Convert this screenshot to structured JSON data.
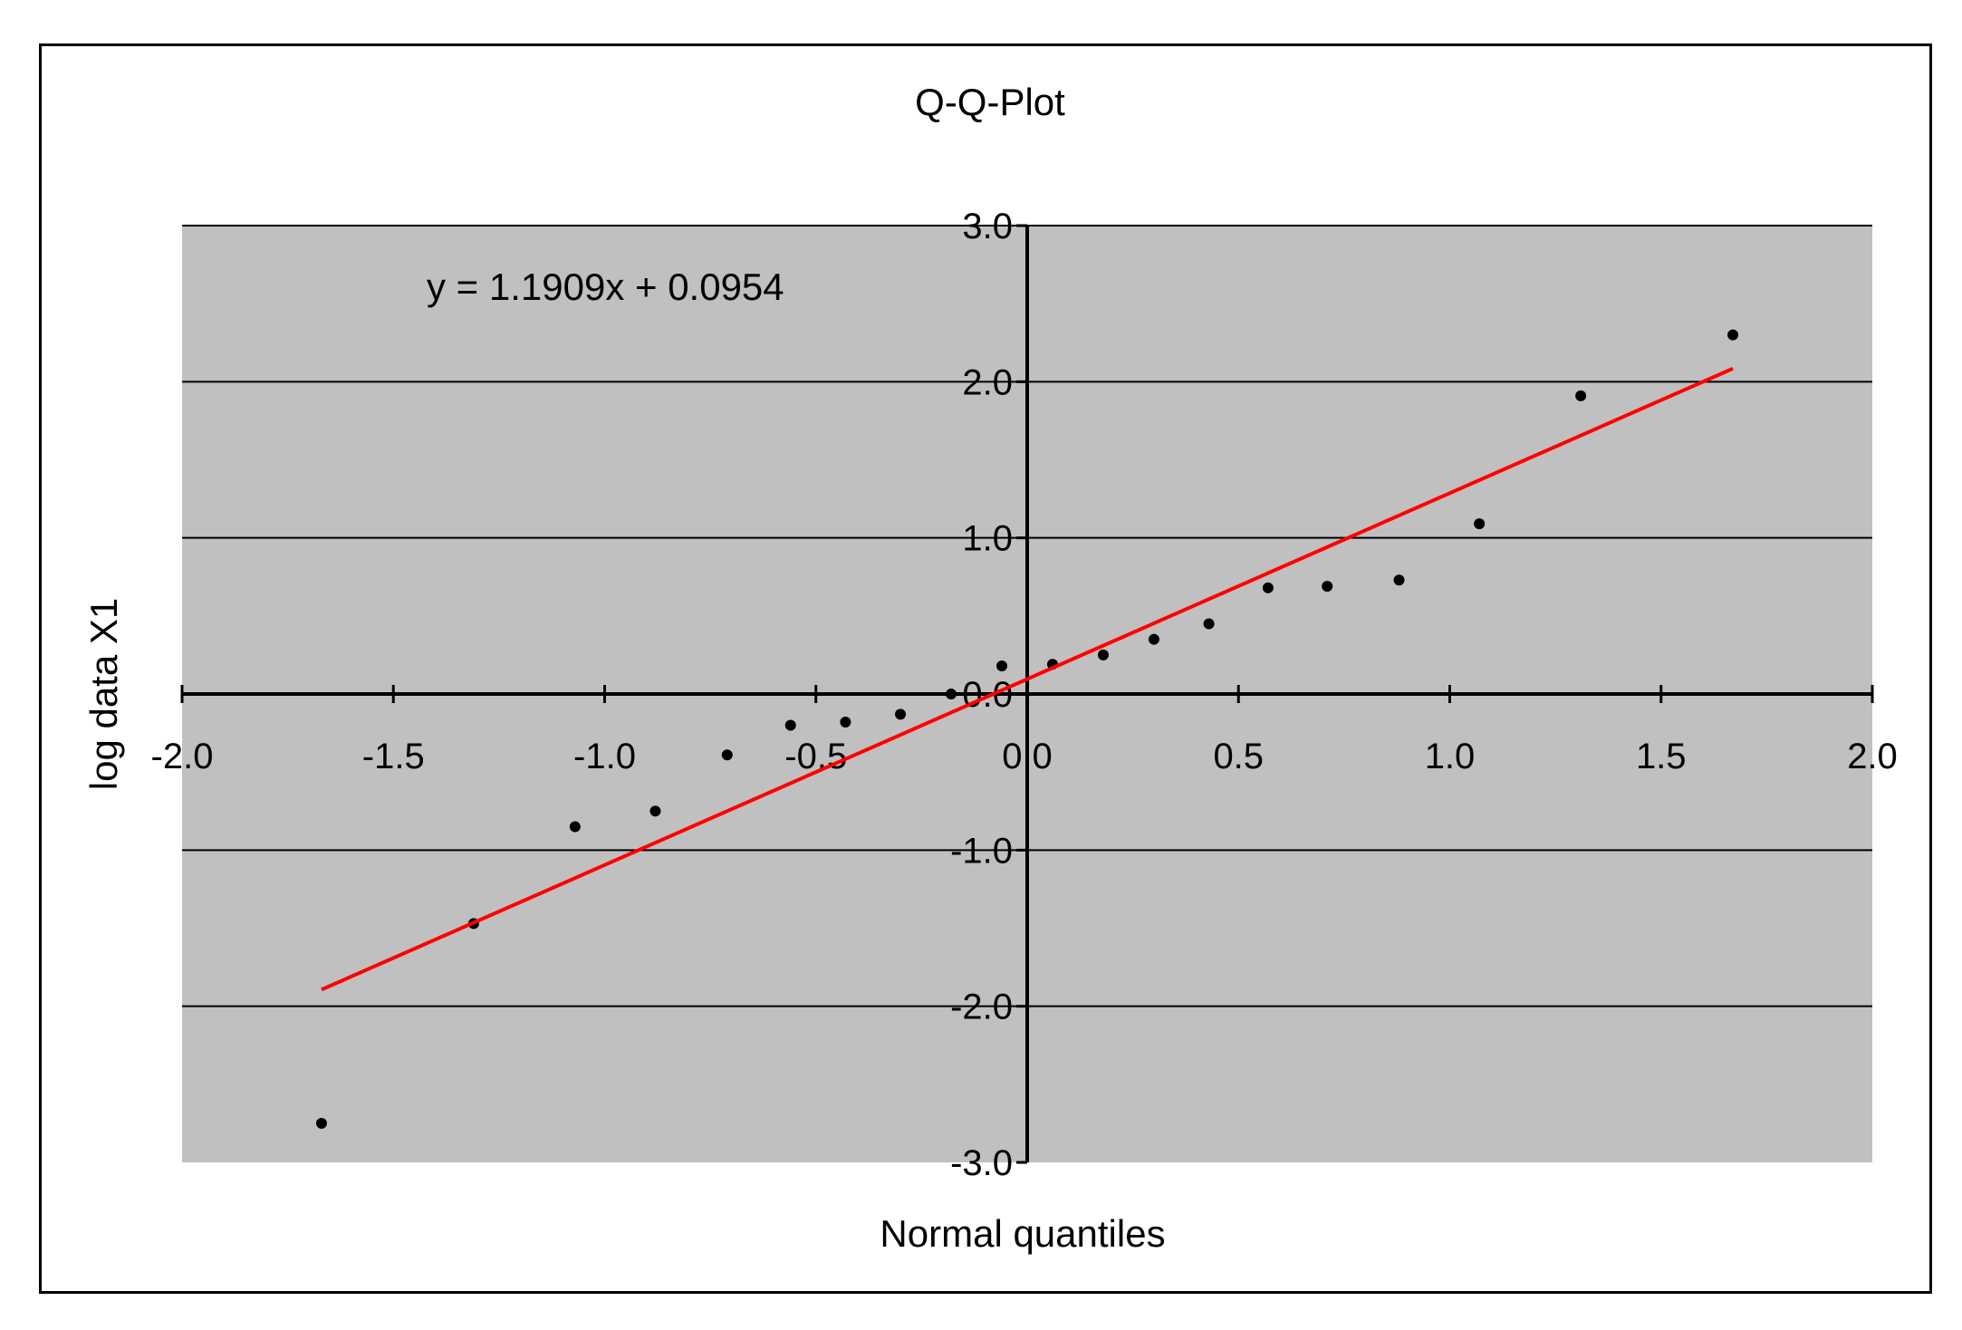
{
  "chart_data": {
    "type": "scatter",
    "title": "Q-Q-Plot",
    "xlabel": "Normal quantiles",
    "ylabel": "log data X1",
    "xlim": [
      -2.0,
      2.0
    ],
    "ylim": [
      -3.0,
      3.0
    ],
    "x_ticks": [
      "-2.0",
      "-1.5",
      "-1.0",
      "-0.5",
      "0.0",
      "0.5",
      "1.0",
      "1.5",
      "2.0"
    ],
    "y_ticks": [
      "3.0",
      "2.0",
      "1.0",
      "0.0",
      "-1.0",
      "-2.0",
      "-3.0"
    ],
    "grid": "horizontal",
    "legend": "none",
    "trendline": {
      "equation": "y = 1.1909x + 0.0954",
      "slope": 1.1909,
      "intercept": 0.0954,
      "x_range": [
        -1.67,
        1.67
      ],
      "color": "#ff0000"
    },
    "points": [
      {
        "x": -1.67,
        "y": -2.75
      },
      {
        "x": -1.31,
        "y": -1.47
      },
      {
        "x": -1.07,
        "y": -0.85
      },
      {
        "x": -0.88,
        "y": -0.75
      },
      {
        "x": -0.71,
        "y": -0.39
      },
      {
        "x": -0.56,
        "y": -0.2
      },
      {
        "x": -0.43,
        "y": -0.18
      },
      {
        "x": -0.3,
        "y": -0.13
      },
      {
        "x": -0.18,
        "y": 0.0
      },
      {
        "x": -0.06,
        "y": 0.18
      },
      {
        "x": 0.06,
        "y": 0.19
      },
      {
        "x": 0.18,
        "y": 0.25
      },
      {
        "x": 0.3,
        "y": 0.35
      },
      {
        "x": 0.43,
        "y": 0.45
      },
      {
        "x": 0.57,
        "y": 0.68
      },
      {
        "x": 0.71,
        "y": 0.69
      },
      {
        "x": 0.88,
        "y": 0.73
      },
      {
        "x": 1.07,
        "y": 1.09
      },
      {
        "x": 1.31,
        "y": 1.91
      },
      {
        "x": 1.67,
        "y": 2.3
      }
    ],
    "plot_background": "#c0c0c0",
    "point_color": "#000000"
  }
}
